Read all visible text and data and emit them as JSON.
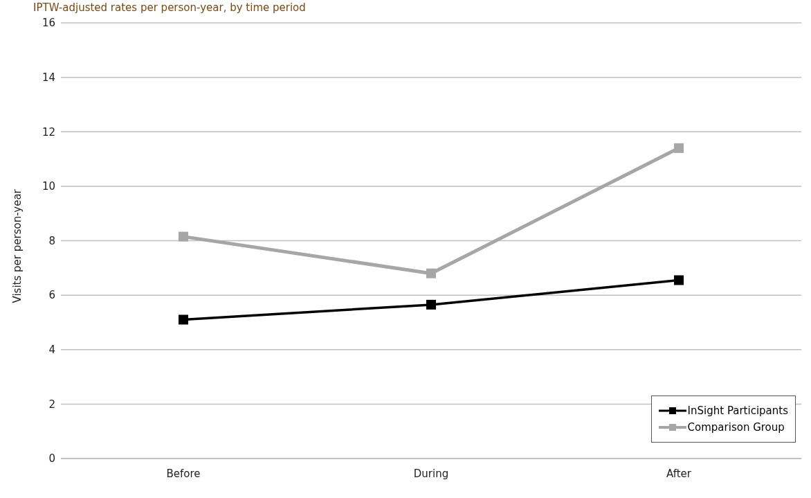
{
  "chart_data": {
    "type": "line",
    "subtitle": "IPTW-adjusted rates per person-year, by time period",
    "ylabel": "Visits per person-year",
    "categories": [
      "Before",
      "During",
      "After"
    ],
    "series": [
      {
        "name": "InSight Participants",
        "color": "#000000",
        "values": [
          5.1,
          5.65,
          6.55
        ]
      },
      {
        "name": "Comparison Group",
        "color": "#a6a6a6",
        "values": [
          8.15,
          6.8,
          11.4
        ]
      }
    ],
    "ylim": [
      0,
      16
    ],
    "yticks": [
      0,
      2,
      4,
      6,
      8,
      10,
      12,
      14,
      16
    ],
    "grid": "y",
    "legend": "bottom right",
    "marker": "square",
    "line_style": "solid"
  }
}
